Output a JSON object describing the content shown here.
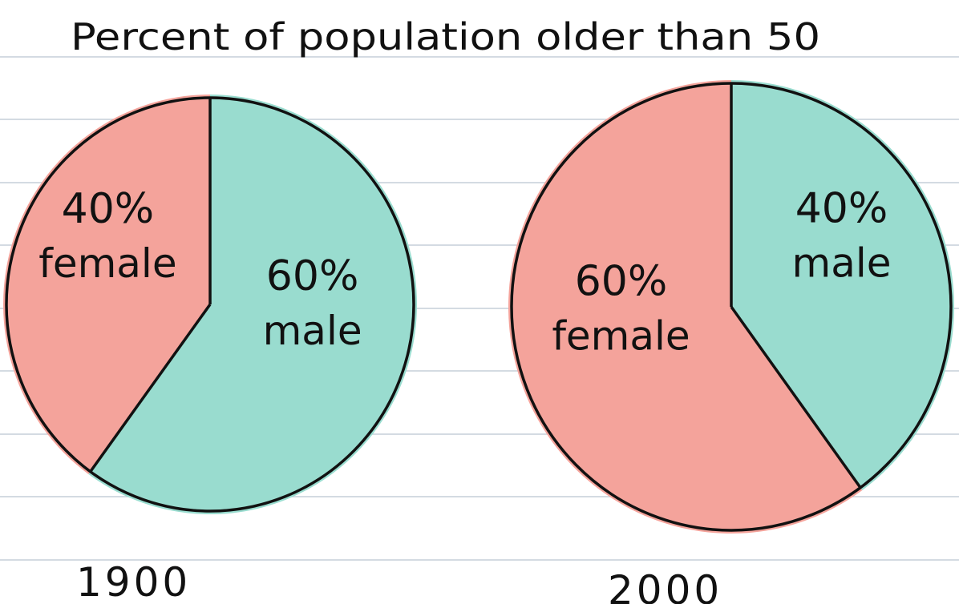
{
  "chart_data": {
    "type": "pie",
    "title": "Percent of population older than 50",
    "charts": [
      {
        "year": "1900",
        "slices": [
          {
            "category": "female",
            "value": 40,
            "label": "40%",
            "name": "female",
            "color": "#f4a39b"
          },
          {
            "category": "male",
            "value": 60,
            "label": "60%",
            "name": "male",
            "color": "#99dccf"
          }
        ]
      },
      {
        "year": "2000",
        "slices": [
          {
            "category": "female",
            "value": 60,
            "label": "60%",
            "name": "female",
            "color": "#f4a39b"
          },
          {
            "category": "male",
            "value": 40,
            "label": "40%",
            "name": "male",
            "color": "#99dccf"
          }
        ]
      }
    ]
  }
}
